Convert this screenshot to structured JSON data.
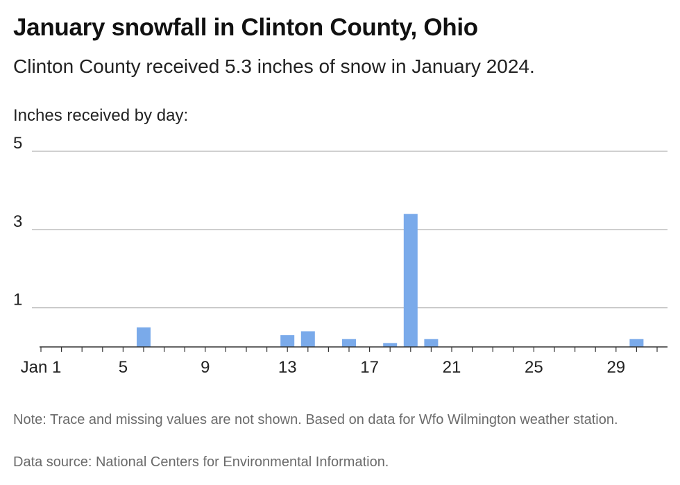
{
  "header": {
    "title": "January snowfall in Clinton County, Ohio",
    "subtitle": "Clinton County received 5.3 inches of snow in January 2024.",
    "ylabel": "Inches received by day:"
  },
  "footer": {
    "note": "Note: Trace and missing values are not shown. Based on data for Wfo Wilmington weather station.",
    "source": "Data source: National Centers for Environmental Information."
  },
  "chart_data": {
    "type": "bar",
    "title": "January snowfall in Clinton County, Ohio",
    "subtitle": "Clinton County received 5.3 inches of snow in January 2024.",
    "ylabel": "Inches received by day:",
    "xlabel": "",
    "bar_color": "#7aaaea",
    "ylim": [
      0,
      5
    ],
    "y_ticks": [
      1,
      3,
      5
    ],
    "x_ticks": [
      {
        "day": 1,
        "label": "Jan 1"
      },
      {
        "day": 5,
        "label": "5"
      },
      {
        "day": 9,
        "label": "9"
      },
      {
        "day": 13,
        "label": "13"
      },
      {
        "day": 17,
        "label": "17"
      },
      {
        "day": 21,
        "label": "21"
      },
      {
        "day": 25,
        "label": "25"
      },
      {
        "day": 29,
        "label": "29"
      }
    ],
    "x_range": [
      1,
      31
    ],
    "grid": true,
    "series": [
      {
        "values": [
          {
            "day": 6,
            "value": 0.5
          },
          {
            "day": 13,
            "value": 0.3
          },
          {
            "day": 14,
            "value": 0.4
          },
          {
            "day": 16,
            "value": 0.2
          },
          {
            "day": 18,
            "value": 0.1
          },
          {
            "day": 19,
            "value": 3.4
          },
          {
            "day": 20,
            "value": 0.2
          },
          {
            "day": 30,
            "value": 0.2
          }
        ]
      }
    ]
  }
}
